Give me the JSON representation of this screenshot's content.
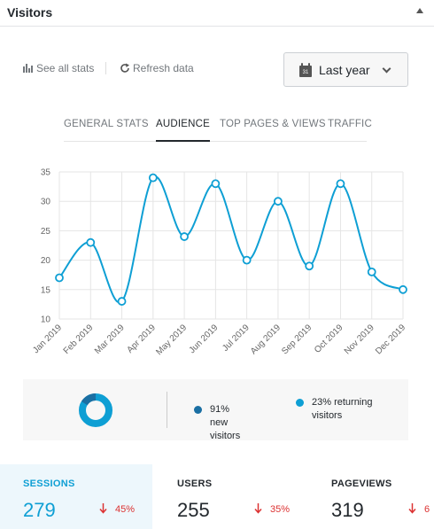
{
  "panel": {
    "title": "Visitors"
  },
  "toolbar": {
    "see_all_label": "See all stats",
    "refresh_label": "Refresh data"
  },
  "range": {
    "selected": "Last year",
    "calendar_day": "31"
  },
  "tabs": [
    "GENERAL STATS",
    "AUDIENCE",
    "TOP PAGES & VIEWS",
    "TRAFFIC"
  ],
  "active_tab": "AUDIENCE",
  "chart_data": {
    "type": "line",
    "categories": [
      "Jan 2019",
      "Feb 2019",
      "Mar 2019",
      "Apr 2019",
      "May 2019",
      "Jun 2019",
      "Jul 2019",
      "Aug 2019",
      "Sep 2019",
      "Oct 2019",
      "Nov 2019",
      "Dec 2019"
    ],
    "values": [
      17,
      23,
      13,
      34,
      24,
      33,
      20,
      30,
      19,
      33,
      18,
      15
    ],
    "ylim": [
      10,
      35
    ],
    "yticks": [
      10,
      15,
      20,
      25,
      30,
      35
    ],
    "grid": true,
    "color": "#0e9fd4"
  },
  "audience": {
    "new_label": "91% new visitors",
    "returning_label": "23% returning visitors",
    "new_color": "#1a6fa3",
    "returning_color": "#0e9fd4"
  },
  "stats": [
    {
      "label": "SESSIONS",
      "value": "279",
      "change": "45%"
    },
    {
      "label": "USERS",
      "value": "255",
      "change": "35%"
    },
    {
      "label": "PAGEVIEWS",
      "value": "319",
      "change": "6"
    }
  ]
}
